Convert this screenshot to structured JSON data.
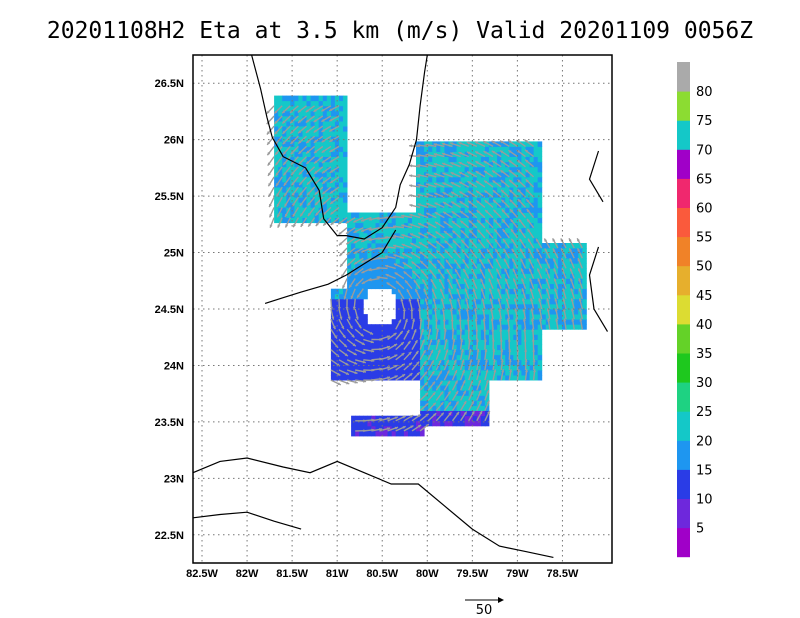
{
  "title": "20201108H2 Eta at 3.5 km (m/s) Valid 20201109 0056Z",
  "map": {
    "lon_range": [
      -82.6,
      -77.95
    ],
    "lat_range": [
      22.25,
      26.75
    ],
    "lon_ticks": [
      "82.5W",
      "82W",
      "81.5W",
      "81W",
      "80.5W",
      "80W",
      "79.5W",
      "79W",
      "78.5W"
    ],
    "lat_ticks": [
      "26.5N",
      "26N",
      "25.5N",
      "25N",
      "24.5N",
      "24N",
      "23.5N",
      "23N",
      "22.5N"
    ],
    "grid": true
  },
  "colorbar": {
    "labels": [
      "5",
      "10",
      "15",
      "20",
      "25",
      "30",
      "35",
      "40",
      "45",
      "50",
      "55",
      "60",
      "65",
      "70",
      "75",
      "80"
    ],
    "colors": [
      "#a000c8",
      "#6e28dc",
      "#2a3ce6",
      "#1e96f0",
      "#14c8c8",
      "#1ed282",
      "#1ec81e",
      "#64d228",
      "#dcdc32",
      "#e6af2d",
      "#f08228",
      "#fa5a3c",
      "#f0286e",
      "#a000c8",
      "#14c8c8",
      "#8cdc32",
      "#aaaaaa"
    ]
  },
  "vector_scale": {
    "label": "50"
  },
  "storm": {
    "center": [
      -80.55,
      24.5
    ],
    "eye_radius_deg": 0.18
  },
  "colors": {
    "wind_vector": "#9b9b9b",
    "coastline": "#000000",
    "grid": "#777777"
  }
}
